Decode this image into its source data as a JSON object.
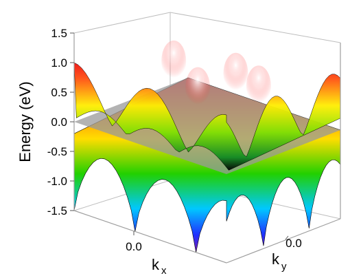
{
  "chart_data": {
    "type": "surface3d",
    "title": "",
    "zlabel": "Energy (eV)",
    "xlabel": {
      "main": "k",
      "sub": "x"
    },
    "ylabel": {
      "main": "k",
      "sub": "y"
    },
    "zlim": [
      -1.5,
      1.5
    ],
    "z_ticks": [
      "1.5",
      "1.0",
      "0.5",
      "0.0",
      "-0.5",
      "-1.0",
      "-1.5"
    ],
    "x_ticks": [
      "0.0"
    ],
    "y_ticks": [
      "0.0"
    ],
    "grid": false,
    "fermi_plane": {
      "energy": 0.0,
      "color": "#9a9a9a"
    },
    "series": [
      {
        "band": "upper",
        "energy_range": [
          0.0,
          1.0
        ]
      },
      {
        "band": "lower",
        "energy_range": [
          -1.5,
          0.0
        ]
      }
    ],
    "colormap": [
      "#7b1fb0",
      "#1f3fff",
      "#00d0ff",
      "#00e000",
      "#ffff00",
      "#ff2020"
    ]
  }
}
